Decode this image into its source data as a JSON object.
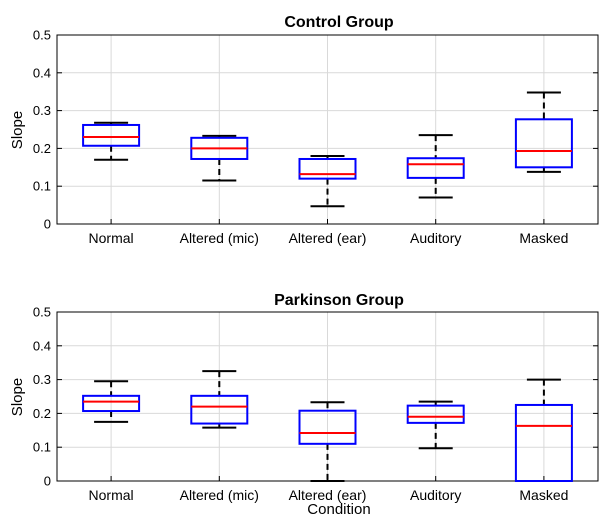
{
  "colors": {
    "box": "#0000ff",
    "median": "#ff0000",
    "whisker": "#000000",
    "grid": "#d9d9d9"
  },
  "xlabel": "Condition",
  "chart_data": [
    {
      "type": "box",
      "title": "Control Group",
      "ylabel": "Slope",
      "ylim": [
        0,
        0.5
      ],
      "yticks": [
        "0",
        "0.1",
        "0.2",
        "0.3",
        "0.4",
        "0.5"
      ],
      "grid": true,
      "categories": [
        "Normal",
        "Altered (mic)",
        "Altered (ear)",
        "Auditory",
        "Masked"
      ],
      "boxes": [
        {
          "whisker_low": 0.17,
          "q1": 0.207,
          "median": 0.23,
          "q3": 0.262,
          "whisker_high": 0.268
        },
        {
          "whisker_low": 0.115,
          "q1": 0.172,
          "median": 0.2,
          "q3": 0.228,
          "whisker_high": 0.233
        },
        {
          "whisker_low": 0.047,
          "q1": 0.12,
          "median": 0.132,
          "q3": 0.172,
          "whisker_high": 0.18
        },
        {
          "whisker_low": 0.07,
          "q1": 0.122,
          "median": 0.158,
          "q3": 0.174,
          "whisker_high": 0.235
        },
        {
          "whisker_low": 0.138,
          "q1": 0.15,
          "median": 0.193,
          "q3": 0.277,
          "whisker_high": 0.348
        }
      ]
    },
    {
      "type": "box",
      "title": "Parkinson Group",
      "ylabel": "Slope",
      "xlabel": "Condition",
      "ylim": [
        0,
        0.5
      ],
      "yticks": [
        "0",
        "0.1",
        "0.2",
        "0.3",
        "0.4",
        "0.5"
      ],
      "grid": true,
      "categories": [
        "Normal",
        "Altered (mic)",
        "Altered (ear)",
        "Auditory",
        "Masked"
      ],
      "boxes": [
        {
          "whisker_low": 0.175,
          "q1": 0.207,
          "median": 0.235,
          "q3": 0.252,
          "whisker_high": 0.295
        },
        {
          "whisker_low": 0.158,
          "q1": 0.17,
          "median": 0.22,
          "q3": 0.252,
          "whisker_high": 0.325
        },
        {
          "whisker_low": 0.0,
          "q1": 0.11,
          "median": 0.142,
          "q3": 0.208,
          "whisker_high": 0.233
        },
        {
          "whisker_low": 0.097,
          "q1": 0.172,
          "median": 0.19,
          "q3": 0.223,
          "whisker_high": 0.235
        },
        {
          "whisker_low": 0.0,
          "q1": 0.0,
          "median": 0.163,
          "q3": 0.225,
          "whisker_high": 0.3
        }
      ]
    }
  ]
}
